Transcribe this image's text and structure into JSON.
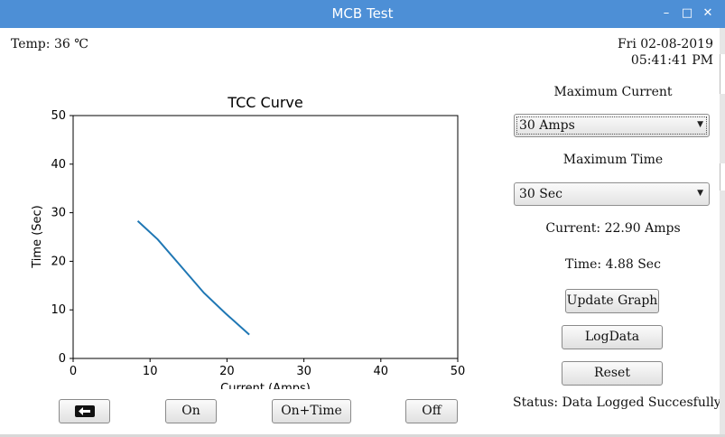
{
  "window": {
    "title": "MCB Test",
    "minimize": "–",
    "maximize": "□",
    "close": "✕"
  },
  "header": {
    "temp": "Temp: 36 ℃",
    "date": "Fri 02-08-2019",
    "time": "05:41:41 PM"
  },
  "controls": {
    "max_current_label": "Maximum Current",
    "max_current_value": "30 Amps",
    "max_time_label": "Maximum Time",
    "max_time_value": "30 Sec",
    "current_readout": "Current: 22.90 Amps",
    "time_readout": "Time: 4.88 Sec",
    "update_graph": "Update Graph",
    "log_data": "LogData",
    "reset": "Reset",
    "status": "Status: Data Logged Succesfully"
  },
  "bottom_buttons": {
    "back_icon": "left-arrow-icon",
    "on": "On",
    "on_time": "On+Time",
    "off": "Off"
  },
  "colors": {
    "titlebar": "#4d8fd6",
    "series": "#1f77b4"
  },
  "chart_data": {
    "type": "line",
    "title": "TCC Curve",
    "xlabel": "Current (Amps)",
    "ylabel": "Time (Sec)",
    "xlim": [
      0,
      50
    ],
    "ylim": [
      0,
      50
    ],
    "xticks": [
      "0",
      "10",
      "20",
      "30",
      "40",
      "50"
    ],
    "yticks": [
      "0",
      "10",
      "20",
      "30",
      "40",
      "50"
    ],
    "grid": false,
    "series": [
      {
        "x": [
          8.4,
          11.0,
          14.0,
          17.0,
          19.8,
          22.9
        ],
        "y": [
          28.3,
          24.5,
          19.0,
          13.5,
          9.3,
          4.9
        ]
      }
    ]
  }
}
